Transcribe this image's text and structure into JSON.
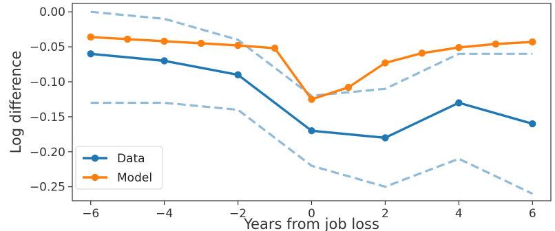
{
  "chart_data": {
    "type": "line",
    "xlabel": "Years from job loss",
    "ylabel": "Log difference",
    "xlim": [
      -6.5,
      6.5
    ],
    "ylim": [
      -0.27,
      0.012
    ],
    "xticks": [
      -6,
      -4,
      -2,
      0,
      2,
      4,
      6
    ],
    "xtick_labels": [
      "−6",
      "−4",
      "−2",
      "0",
      "2",
      "4",
      "6"
    ],
    "yticks": [
      0.0,
      -0.05,
      -0.1,
      -0.15,
      -0.2,
      -0.25
    ],
    "ytick_labels": [
      "0.00",
      "−0.05",
      "−0.10",
      "−0.15",
      "−0.20",
      "−0.25"
    ],
    "grid": false,
    "legend": {
      "position": "lower-left",
      "entries": [
        "Data",
        "Model"
      ]
    },
    "series": [
      {
        "name": "Data",
        "color": "#1f77b4",
        "style": "solid-markers",
        "x": [
          -6,
          -4,
          -2,
          0,
          2,
          4,
          6
        ],
        "y": [
          -0.06,
          -0.07,
          -0.09,
          -0.17,
          -0.18,
          -0.13,
          -0.16
        ]
      },
      {
        "name": "Model",
        "color": "#ff7f0e",
        "style": "solid-markers",
        "x": [
          -6,
          -5,
          -4,
          -3,
          -2,
          -1,
          0,
          1,
          2,
          3,
          4,
          5,
          6
        ],
        "y": [
          -0.036,
          -0.039,
          -0.042,
          -0.045,
          -0.048,
          -0.052,
          -0.125,
          -0.108,
          -0.073,
          -0.059,
          -0.051,
          -0.046,
          -0.043
        ]
      },
      {
        "color": "#8fbad8",
        "style": "dashed",
        "x": [
          -6,
          -4,
          -2,
          0,
          2,
          4,
          6
        ],
        "y": [
          0.0,
          -0.01,
          -0.04,
          -0.12,
          -0.11,
          -0.06,
          -0.06
        ]
      },
      {
        "color": "#8fbad8",
        "style": "dashed",
        "x": [
          -6,
          -4,
          -2,
          0,
          2,
          4,
          6
        ],
        "y": [
          -0.13,
          -0.13,
          -0.14,
          -0.22,
          -0.25,
          -0.21,
          -0.26
        ]
      }
    ]
  }
}
